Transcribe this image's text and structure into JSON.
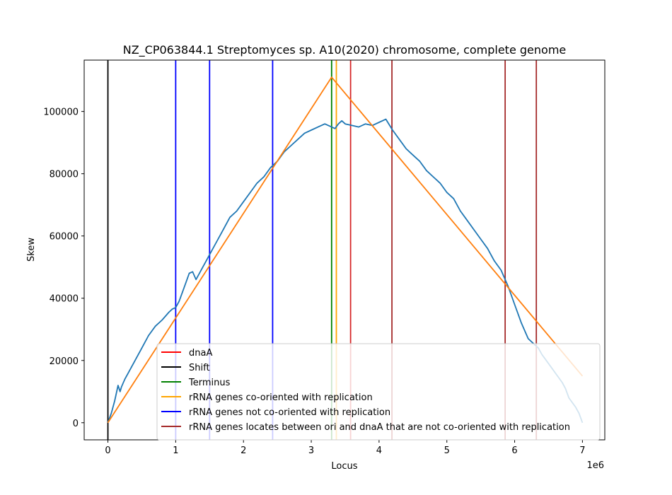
{
  "chart_data": {
    "type": "line",
    "title": "NZ_CP063844.1 Streptomyces sp. A10(2020) chromosome, complete genome",
    "xlabel": "Locus",
    "ylabel": "Skew",
    "x_offset_label": "1e6",
    "xlim": [
      -350000,
      7330000
    ],
    "ylim": [
      -5500,
      116500
    ],
    "x_ticks": [
      0,
      1000000,
      2000000,
      3000000,
      4000000,
      5000000,
      6000000,
      7000000
    ],
    "x_tick_labels": [
      "0",
      "1",
      "2",
      "3",
      "4",
      "5",
      "6",
      "7"
    ],
    "y_ticks": [
      0,
      20000,
      40000,
      60000,
      80000,
      100000
    ],
    "y_tick_labels": [
      "0",
      "20000",
      "40000",
      "60000",
      "80000",
      "100000"
    ],
    "grid": false,
    "legend_position": "lower right",
    "series": [
      {
        "id": "skew",
        "color": "#1f77b4",
        "x": [
          0,
          50000,
          100000,
          150000,
          180000,
          200000,
          250000,
          300000,
          400000,
          500000,
          600000,
          700000,
          800000,
          900000,
          950000,
          1000000,
          1050000,
          1100000,
          1150000,
          1200000,
          1250000,
          1300000,
          1350000,
          1400000,
          1450000,
          1500000,
          1600000,
          1700000,
          1800000,
          1900000,
          2000000,
          2100000,
          2200000,
          2300000,
          2400000,
          2500000,
          2600000,
          2700000,
          2800000,
          2900000,
          3000000,
          3100000,
          3200000,
          3300000,
          3350000,
          3400000,
          3450000,
          3500000,
          3600000,
          3700000,
          3800000,
          3900000,
          4000000,
          4100000,
          4200000,
          4300000,
          4400000,
          4500000,
          4600000,
          4700000,
          4800000,
          4900000,
          5000000,
          5100000,
          5200000,
          5300000,
          5400000,
          5500000,
          5600000,
          5700000,
          5800000,
          5900000,
          6000000,
          6100000,
          6200000,
          6300000,
          6350000,
          6400000,
          6500000,
          6600000,
          6700000,
          6750000,
          6800000,
          6900000,
          6950000,
          7000000
        ],
        "y": [
          0,
          3000,
          7000,
          12000,
          10000,
          11500,
          14000,
          16000,
          20000,
          24000,
          28000,
          31000,
          33000,
          35500,
          36500,
          37000,
          39000,
          42000,
          45000,
          48000,
          48500,
          46000,
          48000,
          50000,
          52000,
          54000,
          58000,
          62000,
          66000,
          68000,
          71000,
          74000,
          77000,
          79000,
          82000,
          84000,
          87000,
          89000,
          91000,
          93000,
          94000,
          95000,
          96000,
          95000,
          94500,
          96000,
          97000,
          96000,
          95500,
          95000,
          96000,
          95500,
          96500,
          97500,
          94000,
          91000,
          88000,
          86000,
          84000,
          81000,
          79000,
          77000,
          74000,
          72000,
          68000,
          65000,
          62000,
          59000,
          56000,
          52000,
          49000,
          44000,
          38000,
          32000,
          27000,
          25000,
          24000,
          22000,
          19000,
          16000,
          13000,
          11000,
          8000,
          5000,
          3000,
          0
        ]
      },
      {
        "id": "fit",
        "color": "#ff7f0e",
        "x": [
          0,
          3300000,
          7000000
        ],
        "y": [
          0,
          111000,
          15000
        ]
      }
    ],
    "vlines": [
      {
        "category": "Shift",
        "x": 0,
        "color": "#000000"
      },
      {
        "category": "rRNA genes not co-oriented with replication",
        "x": 1000000,
        "color": "#0000ff"
      },
      {
        "category": "rRNA genes not co-oriented with replication",
        "x": 1500000,
        "color": "#0000ff"
      },
      {
        "category": "rRNA genes not co-oriented with replication",
        "x": 2430000,
        "color": "#0000ff"
      },
      {
        "category": "Terminus",
        "x": 3300000,
        "color": "#008000"
      },
      {
        "category": "rRNA genes co-oriented with replication",
        "x": 3370000,
        "color": "#ffa500"
      },
      {
        "category": "dnaA",
        "x": 3580000,
        "color": "#d62728"
      },
      {
        "category": "rRNA genes locates between ori and dnaA that are not co-oriented with replication",
        "x": 4190000,
        "color": "#a52a2a"
      },
      {
        "category": "rRNA genes locates between ori and dnaA that are not co-oriented with replication",
        "x": 5860000,
        "color": "#a52a2a"
      },
      {
        "category": "rRNA genes locates between ori and dnaA that are not co-oriented with replication",
        "x": 6320000,
        "color": "#a52a2a"
      }
    ],
    "legend": [
      {
        "label": "dnaA",
        "color": "#ff0000"
      },
      {
        "label": "Shift",
        "color": "#000000"
      },
      {
        "label": "Terminus",
        "color": "#008000"
      },
      {
        "label": "rRNA genes co-oriented with replication",
        "color": "#ffa500"
      },
      {
        "label": "rRNA genes not co-oriented with replication",
        "color": "#0000ff"
      },
      {
        "label": "rRNA genes locates between ori and dnaA that are not co-oriented with replication",
        "color": "#a52a2a"
      }
    ]
  }
}
